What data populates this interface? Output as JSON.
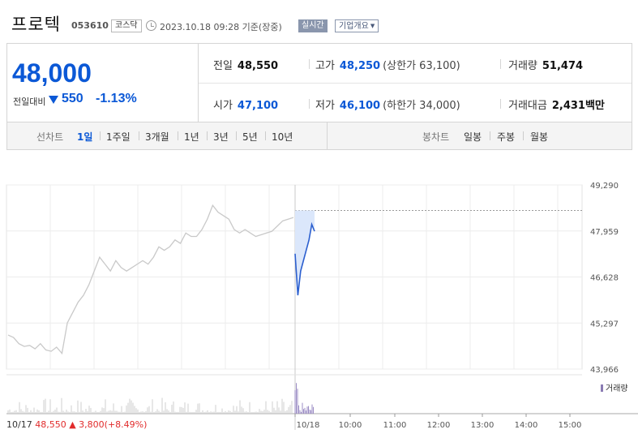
{
  "header": {
    "name": "프로텍",
    "code": "053610",
    "market": "코스닥",
    "datetime": "2023.10.18 09:28 기준(장중)",
    "realtime": "실시간",
    "company_btn": "기업개요"
  },
  "quote": {
    "price": "48,000",
    "change_label": "전일대비",
    "change": "550",
    "change_rate": "-1.13%",
    "prev_close_label": "전일",
    "prev_close": "48,550",
    "high_label": "고가",
    "high": "48,250",
    "upper_limit": "(상한가 63,100)",
    "volume_label": "거래량",
    "volume": "51,474",
    "open_label": "시가",
    "open": "47,100",
    "low_label": "저가",
    "low": "46,100",
    "lower_limit": "(하한가 34,000)",
    "amount_label": "거래대금",
    "amount": "2,431",
    "amount_unit": "백만"
  },
  "tabs": {
    "line_label": "선차트",
    "line_items": [
      "1일",
      "1주일",
      "3개월",
      "1년",
      "3년",
      "5년",
      "10년"
    ],
    "active": "1일",
    "candle_label": "봉차트",
    "candle_items": [
      "일봉",
      "주봉",
      "월봉"
    ]
  },
  "chart_data": {
    "type": "line",
    "title": "",
    "ylim": [
      43966,
      49290
    ],
    "yticks": [
      "49,290",
      "47,959",
      "46,628",
      "45,297",
      "43,966"
    ],
    "xticks": [
      "10/17",
      "10/18",
      "10:00",
      "11:00",
      "12:00",
      "13:00",
      "14:00",
      "15:00"
    ],
    "series": [
      {
        "name": "10/17",
        "color": "#c9c9c9",
        "values": [
          44950,
          44880,
          44700,
          44620,
          44650,
          44550,
          44700,
          44520,
          44480,
          44600,
          44420,
          45300,
          45600,
          45900,
          46100,
          46400,
          46800,
          47200,
          47000,
          46800,
          47100,
          46900,
          46800,
          46900,
          47000,
          47100,
          47000,
          47200,
          47500,
          47400,
          47500,
          47700,
          47600,
          47900,
          47800,
          47800,
          48000,
          48300,
          48700,
          48500,
          48400,
          48300,
          48000,
          47900,
          48000,
          47900,
          47800,
          47850,
          47900,
          47950,
          48100,
          48250,
          48300,
          48350
        ]
      },
      {
        "name": "10/18",
        "color": "#2b5fcf",
        "values": [
          47300,
          46100,
          46800,
          47100,
          47400,
          47700,
          48150,
          47950
        ]
      }
    ],
    "prev_close": 48550,
    "volume_label": "거래량"
  },
  "footer": {
    "date": "10/17",
    "price": "48,550",
    "change": "▲ 3,800",
    "rate": "(+8.49%)"
  }
}
